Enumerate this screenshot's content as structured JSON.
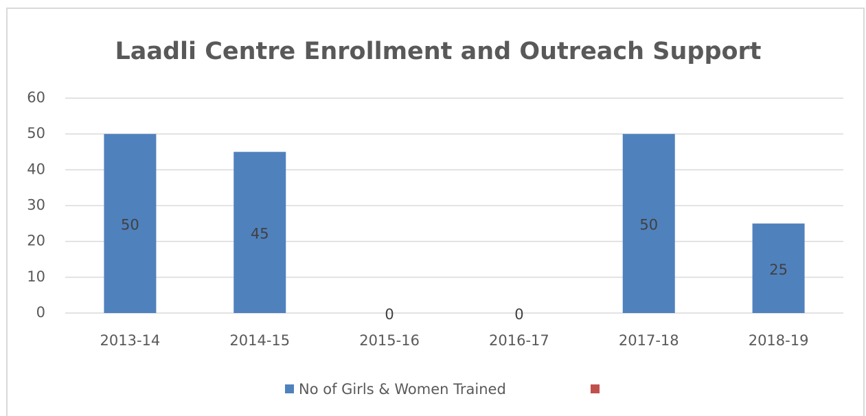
{
  "chart_data": {
    "type": "bar",
    "title": "Laadli Centre Enrollment and Outreach Support",
    "categories": [
      "2013-14",
      "2014-15",
      "2015-16",
      "2016-17",
      "2017-18",
      "2018-19"
    ],
    "series": [
      {
        "name": "No of Girls & Women Trained",
        "color": "#4f81bd",
        "values": [
          50,
          45,
          0,
          0,
          50,
          25
        ]
      },
      {
        "name": null,
        "color": "#c0504d",
        "values": [
          null,
          null,
          null,
          null,
          null,
          null
        ]
      }
    ],
    "ylim": [
      0,
      60
    ],
    "yticks": [
      0,
      10,
      20,
      30,
      40,
      50,
      60
    ],
    "grid": true,
    "legend": "bottom"
  }
}
